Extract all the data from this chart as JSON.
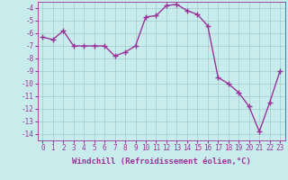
{
  "x": [
    0,
    1,
    2,
    3,
    4,
    5,
    6,
    7,
    8,
    9,
    10,
    11,
    12,
    13,
    14,
    15,
    16,
    17,
    18,
    19,
    20,
    21,
    22,
    23
  ],
  "y": [
    -6.3,
    -6.5,
    -5.8,
    -7.0,
    -7.0,
    -7.0,
    -7.0,
    -7.8,
    -7.5,
    -7.0,
    -4.7,
    -4.6,
    -3.8,
    -3.7,
    -4.2,
    -4.5,
    -5.4,
    -9.5,
    -10.0,
    -10.7,
    -11.8,
    -13.8,
    -11.5,
    -9.0
  ],
  "line_color": "#993399",
  "marker": "+",
  "markersize": 4,
  "linewidth": 1.0,
  "background_color": "#c8ecec",
  "grid_color": "#a0cccc",
  "xlabel": "Windchill (Refroidissement éolien,°C)",
  "xlabel_color": "#993399",
  "xlabel_fontsize": 6.5,
  "tick_color": "#993399",
  "tick_fontsize": 5.5,
  "ylim": [
    -14.5,
    -3.5
  ],
  "xlim": [
    -0.5,
    23.5
  ],
  "yticks": [
    -4,
    -5,
    -6,
    -7,
    -8,
    -9,
    -10,
    -11,
    -12,
    -13,
    -14
  ],
  "xticks": [
    0,
    1,
    2,
    3,
    4,
    5,
    6,
    7,
    8,
    9,
    10,
    11,
    12,
    13,
    14,
    15,
    16,
    17,
    18,
    19,
    20,
    21,
    22,
    23
  ]
}
